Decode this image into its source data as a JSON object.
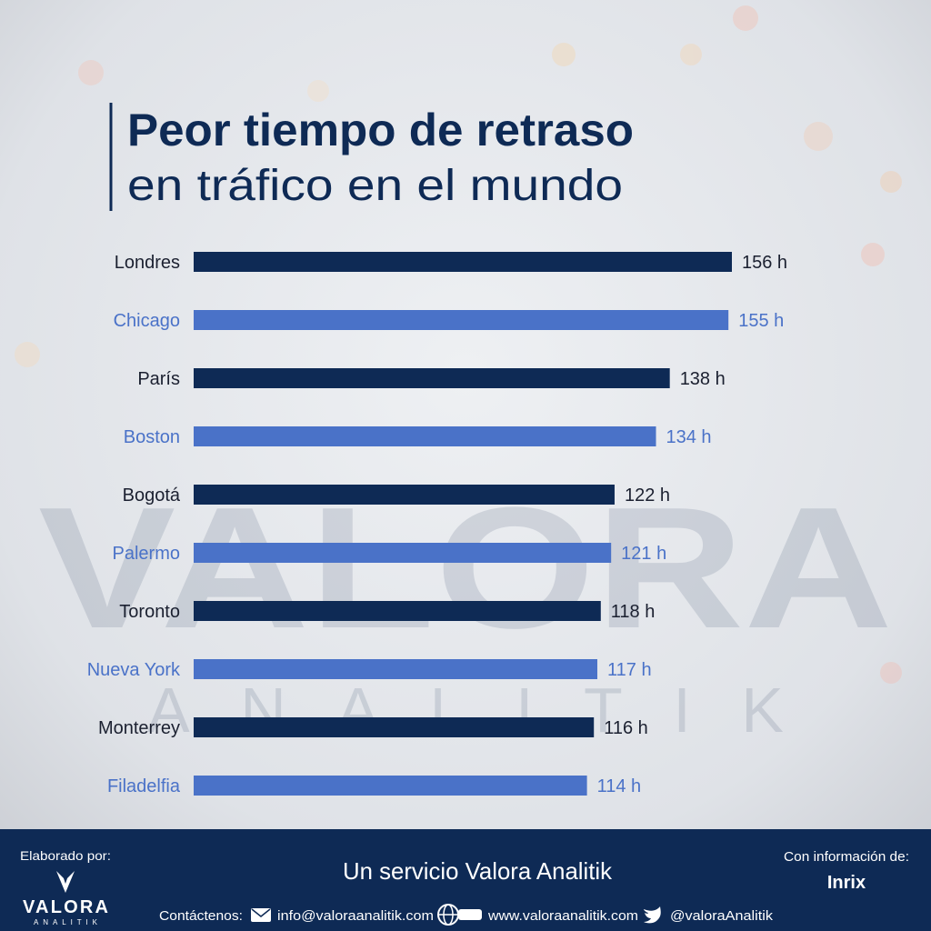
{
  "chart_data": {
    "type": "bar",
    "orientation": "horizontal",
    "title": "Peor tiempo de retraso",
    "subtitle": "en tráfico en el mundo",
    "categories": [
      "Londres",
      "Chicago",
      "París",
      "Boston",
      "Bogotá",
      "Palermo",
      "Toronto",
      "Nueva York",
      "Monterrey",
      "Filadelfia"
    ],
    "values": [
      156,
      155,
      138,
      134,
      122,
      121,
      118,
      117,
      116,
      114
    ],
    "value_labels": [
      "156 h",
      "155 h",
      "138 h",
      "134 h",
      "122 h",
      "121 h",
      "118 h",
      "117 h",
      "116 h",
      "114 h"
    ],
    "colors": [
      "#0e2a55",
      "#4a72c8"
    ]
  },
  "watermark": {
    "brand": "VALORA",
    "sub": "ANALITIK"
  },
  "footer": {
    "made_by": "Elaborado por:",
    "logo_name": "VALORA",
    "logo_sub": "ANALITIK",
    "service": "Un servicio Valora Analitik",
    "source_label": "Con información de:",
    "source": "Inrix",
    "contact_label": "Contáctenos:",
    "email": "info@valoraanalitik.com",
    "web": "www.valoraanalitik.com",
    "twitter": "@valoraAnalitik"
  }
}
